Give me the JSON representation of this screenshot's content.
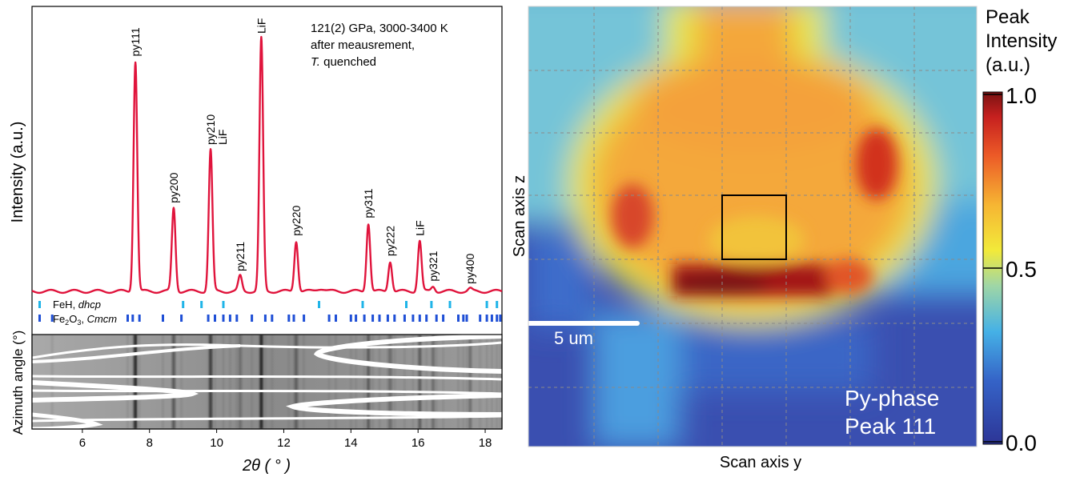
{
  "colors": {
    "xrd_line": "#e0143c",
    "feh_ticks": "#1fb4e8",
    "fe2o3_ticks": "#1f4fd6",
    "box": "#000000",
    "scale_bar": "#ffffff"
  },
  "chart_data": [
    {
      "type": "line",
      "title": "",
      "xlabel": "2θ ( ° )",
      "ylabel": "Intensity (a.u.)",
      "xlim": [
        4.5,
        18.5
      ],
      "x_ticks": [
        6,
        8,
        10,
        12,
        14,
        16,
        18
      ],
      "annotation": {
        "line1": "121(2) GPa, 3000-3400 K",
        "line2": "after meausrement,",
        "line3_italic": "T.",
        "line3_rest": " quenched"
      },
      "peaks": [
        {
          "x": 7.58,
          "height": 0.91,
          "label": "py111"
        },
        {
          "x": 8.72,
          "height": 0.33,
          "label": "py200"
        },
        {
          "x": 9.82,
          "height": 0.56,
          "label": "py210\nLiF"
        },
        {
          "x": 10.7,
          "height": 0.06,
          "label": "py211"
        },
        {
          "x": 11.33,
          "height": 1.0,
          "label": "LiF"
        },
        {
          "x": 12.37,
          "height": 0.2,
          "label": "py220"
        },
        {
          "x": 14.52,
          "height": 0.27,
          "label": "py311"
        },
        {
          "x": 15.17,
          "height": 0.12,
          "label": "py222"
        },
        {
          "x": 16.05,
          "height": 0.2,
          "label": "LiF"
        },
        {
          "x": 16.45,
          "height": 0.02,
          "label": "py321"
        },
        {
          "x": 17.55,
          "height": 0.01,
          "label": "py400"
        }
      ],
      "phases": [
        {
          "name": "FeH",
          "style": "dhcp",
          "positions": [
            9.0,
            9.55,
            10.2,
            13.05,
            14.35,
            15.65,
            16.4,
            16.95,
            18.05,
            18.35
          ]
        },
        {
          "name": "Fe2O3",
          "name_plain": "Fe",
          "name_sub": "2",
          "name_tail": "O",
          "name_sub2": "3",
          "style": "Cmcm",
          "positions": [
            5.1,
            7.35,
            7.5,
            7.7,
            8.4,
            8.95,
            9.75,
            9.95,
            10.2,
            10.4,
            10.6,
            11.05,
            11.45,
            11.65,
            12.15,
            12.3,
            12.6,
            13.35,
            13.55,
            14.0,
            14.15,
            14.4,
            14.65,
            14.85,
            15.1,
            15.3,
            15.6,
            15.85,
            16.05,
            16.25,
            16.55,
            16.75,
            17.2,
            17.35,
            17.45,
            17.85,
            18.05,
            18.2,
            18.35,
            18.45
          ]
        }
      ]
    },
    {
      "type": "image",
      "ylabel": "Azimuth angle (°)",
      "xlim": [
        4.5,
        18.5
      ]
    },
    {
      "type": "heatmap",
      "xlabel": "Scan axis y",
      "ylabel": "Scan axis z",
      "colorbar_title": "Peak\nIntensity\n(a.u.)",
      "colorbar_ticks": [
        "1.0",
        "0.5",
        "0.0"
      ],
      "colorbar_range": [
        0,
        1
      ],
      "scale_bar_label": "5 um",
      "inset_line1": "Py-phase",
      "inset_line2": "Peak 111"
    }
  ]
}
